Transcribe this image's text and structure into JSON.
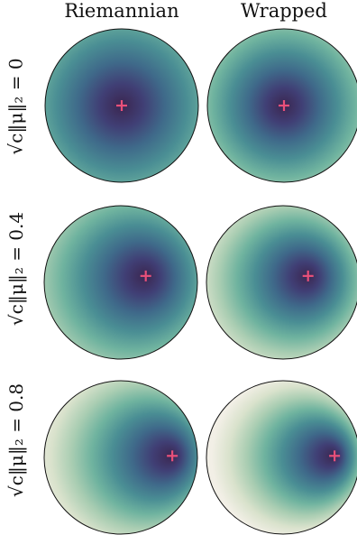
{
  "column_titles": [
    "Riemannian",
    "Wrapped"
  ],
  "row_labels": [
    "√c‖μ‖₂ = 0",
    "√c‖μ‖₂ = 0.4",
    "√c‖μ‖₂ = 0.8"
  ],
  "marker_symbol": "+",
  "colors": {
    "marker": "#e8507a",
    "disk_outline": "#111111",
    "colormap": [
      "#f2efe6",
      "#d9e2cc",
      "#a9cdb2",
      "#6fb39f",
      "#4a8e94",
      "#3f6a8a",
      "#403f75",
      "#3b2650"
    ]
  },
  "panels": [
    {
      "row": 0,
      "col": 0,
      "mean_norm": 0.0,
      "mean_dir": [
        1,
        0
      ]
    },
    {
      "row": 0,
      "col": 1,
      "mean_norm": 0.0,
      "mean_dir": [
        1,
        0
      ]
    },
    {
      "row": 1,
      "col": 0,
      "mean_norm": 0.4,
      "mean_dir": [
        0.97,
        -0.25
      ]
    },
    {
      "row": 1,
      "col": 1,
      "mean_norm": 0.4,
      "mean_dir": [
        0.97,
        -0.25
      ]
    },
    {
      "row": 2,
      "col": 0,
      "mean_norm": 0.8,
      "mean_dir": [
        1,
        -0.03
      ]
    },
    {
      "row": 2,
      "col": 1,
      "mean_norm": 0.8,
      "mean_dir": [
        1,
        -0.03
      ]
    }
  ]
}
